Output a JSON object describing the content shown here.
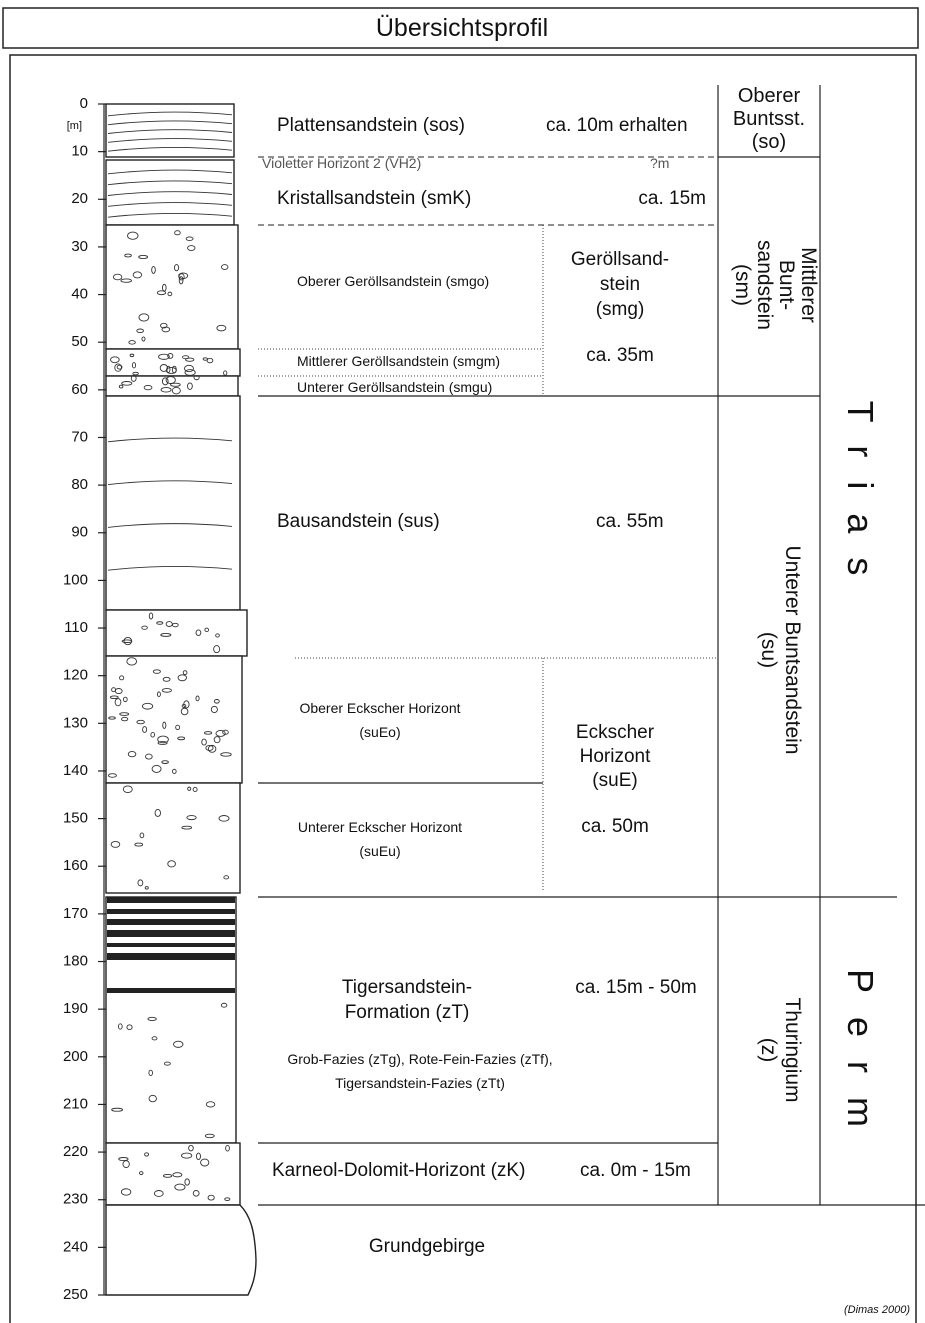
{
  "header": {
    "title": "Übersichtsprofil"
  },
  "depth_axis": {
    "unit": "[m]",
    "ticks": [
      0,
      10,
      20,
      30,
      40,
      50,
      60,
      70,
      80,
      90,
      100,
      110,
      120,
      130,
      140,
      150,
      160,
      170,
      180,
      190,
      200,
      210,
      220,
      230,
      240,
      250
    ]
  },
  "units": [
    {
      "name": "Plattensandstein (sos)",
      "thickness": "ca. 10m erhalten"
    },
    {
      "name": "Violetter Horizont 2 (VH2)",
      "thickness": "?m"
    },
    {
      "name": "Kristallsandstein (smK)",
      "thickness": "ca. 15m"
    },
    {
      "name": "Oberer Geröllsandstein (smgo)"
    },
    {
      "name": "Mittlerer Geröllsandstein (smgm)"
    },
    {
      "name": "Unterer Geröllsandstein (smgu)"
    },
    {
      "name": "Bausandstein (sus)",
      "thickness": "ca. 55m"
    },
    {
      "name": [
        "Oberer Eckscher Horizont",
        "(suEo)"
      ]
    },
    {
      "name": [
        "Unterer Eckscher Horizont",
        "(suEu)"
      ]
    },
    {
      "name": [
        "Tigersandstein-",
        "Formation (zT)"
      ],
      "thickness": "ca. 15m - 50m",
      "note": [
        "Grob-Fazies (zTg), Rote-Fein-Fazies (zTf),",
        "Tigersandstein-Fazies (zTt)"
      ]
    },
    {
      "name": "Karneol-Dolomit-Horizont (zK)",
      "thickness": "ca. 0m - 15m"
    },
    {
      "name": "Grundgebirge"
    }
  ],
  "groups": [
    {
      "name": [
        "Geröllsand-",
        "stein",
        "(smg)"
      ],
      "thickness": "ca. 35m"
    },
    {
      "name": [
        "Eckscher",
        "Horizont",
        "(suE)"
      ],
      "thickness": "ca. 50m"
    }
  ],
  "formations": [
    {
      "name": [
        "Oberer",
        "Buntsst.",
        "(so)"
      ]
    },
    {
      "name": [
        "Mittlerer",
        "Bunt-",
        "sandstein",
        "(sm)"
      ]
    },
    {
      "name": [
        "Unterer Buntsandstein",
        "(su)"
      ]
    },
    {
      "name": [
        "Thuringium",
        "(z)"
      ]
    }
  ],
  "systems": [
    "Trias",
    "Perm"
  ],
  "credit": "(Dimas 2000)"
}
